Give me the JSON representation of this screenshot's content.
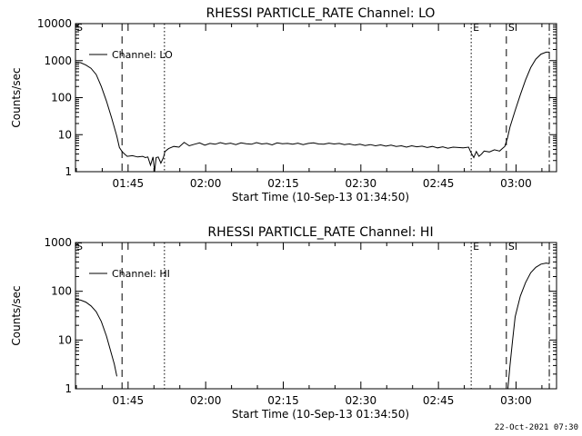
{
  "chart_data": [
    {
      "type": "line",
      "title": "RHESSI PARTICLE_RATE Channel: LO",
      "xlabel": "Start Time (10-Sep-13 01:34:50)",
      "ylabel": "Counts/sec",
      "yscale": "log",
      "ylim": [
        1,
        10000
      ],
      "xlim_minutes": [
        0,
        93
      ],
      "y_ticks": [
        {
          "v": 1,
          "label": "1"
        },
        {
          "v": 10,
          "label": "10"
        },
        {
          "v": 100,
          "label": "100"
        },
        {
          "v": 1000,
          "label": "1000"
        },
        {
          "v": 10000,
          "label": "10000"
        }
      ],
      "x_ticks": [
        {
          "t": 10.17,
          "label": "01:45"
        },
        {
          "t": 25.17,
          "label": "02:00"
        },
        {
          "t": 40.17,
          "label": "02:15"
        },
        {
          "t": 55.17,
          "label": "02:30"
        },
        {
          "t": 70.17,
          "label": "02:45"
        },
        {
          "t": 85.17,
          "label": "03:00"
        }
      ],
      "legend": {
        "label": "Channel: LO",
        "placement": "top-left"
      },
      "markers": [
        {
          "t": 9.0,
          "style": "dashed",
          "label": ""
        },
        {
          "t": 17.2,
          "style": "dotted",
          "label": ""
        },
        {
          "t": 76.5,
          "style": "dotted",
          "label": "E"
        },
        {
          "t": 83.3,
          "style": "dashed",
          "label": "S"
        },
        {
          "t": 91.6,
          "style": "dashdot",
          "label": ""
        }
      ],
      "corner_label": "S",
      "grid": false,
      "series": [
        {
          "name": "Channel: LO",
          "points": [
            [
              0,
              900
            ],
            [
              1,
              880
            ],
            [
              2,
              760
            ],
            [
              3,
              620
            ],
            [
              4,
              420
            ],
            [
              5,
              200
            ],
            [
              6,
              80
            ],
            [
              7,
              28
            ],
            [
              8,
              9
            ],
            [
              8.5,
              4.5
            ],
            [
              9,
              3.5
            ],
            [
              9.5,
              3
            ],
            [
              10,
              2.6
            ],
            [
              11,
              2.7
            ],
            [
              12,
              2.5
            ],
            [
              13,
              2.6
            ],
            [
              13.5,
              2.4
            ],
            [
              14,
              2.5
            ],
            [
              14.5,
              1.5
            ],
            [
              15,
              2.5
            ],
            [
              15.3,
              1.0
            ],
            [
              15.6,
              2.4
            ],
            [
              16,
              2.5
            ],
            [
              16.5,
              1.7
            ],
            [
              17,
              2.4
            ],
            [
              17.3,
              3.5
            ],
            [
              18,
              4.2
            ],
            [
              19,
              4.8
            ],
            [
              20,
              4.6
            ],
            [
              21,
              6.2
            ],
            [
              22,
              5.0
            ],
            [
              23,
              5.5
            ],
            [
              24,
              6.0
            ],
            [
              25,
              5.2
            ],
            [
              26,
              5.8
            ],
            [
              27,
              5.5
            ],
            [
              28,
              6.1
            ],
            [
              29,
              5.6
            ],
            [
              30,
              5.9
            ],
            [
              31,
              5.4
            ],
            [
              32,
              6.0
            ],
            [
              33,
              5.7
            ],
            [
              34,
              5.5
            ],
            [
              35,
              6.1
            ],
            [
              36,
              5.6
            ],
            [
              37,
              5.8
            ],
            [
              38,
              5.3
            ],
            [
              39,
              6.0
            ],
            [
              40,
              5.7
            ],
            [
              41,
              5.8
            ],
            [
              42,
              5.5
            ],
            [
              43,
              5.9
            ],
            [
              44,
              5.4
            ],
            [
              45,
              5.8
            ],
            [
              46,
              6.0
            ],
            [
              47,
              5.6
            ],
            [
              48,
              5.5
            ],
            [
              49,
              5.9
            ],
            [
              50,
              5.6
            ],
            [
              51,
              5.8
            ],
            [
              52,
              5.4
            ],
            [
              53,
              5.6
            ],
            [
              54,
              5.2
            ],
            [
              55,
              5.5
            ],
            [
              56,
              5.1
            ],
            [
              57,
              5.4
            ],
            [
              58,
              5.0
            ],
            [
              59,
              5.3
            ],
            [
              60,
              4.9
            ],
            [
              61,
              5.2
            ],
            [
              62,
              4.8
            ],
            [
              63,
              5.0
            ],
            [
              64,
              4.6
            ],
            [
              65,
              5.0
            ],
            [
              66,
              4.7
            ],
            [
              67,
              4.9
            ],
            [
              68,
              4.5
            ],
            [
              69,
              4.8
            ],
            [
              70,
              4.4
            ],
            [
              71,
              4.7
            ],
            [
              72,
              4.3
            ],
            [
              73,
              4.6
            ],
            [
              74,
              4.5
            ],
            [
              75,
              4.4
            ],
            [
              76,
              4.6
            ],
            [
              76.5,
              3.2
            ],
            [
              77,
              2.4
            ],
            [
              77.5,
              3.5
            ],
            [
              78,
              2.6
            ],
            [
              78.5,
              3.0
            ],
            [
              79,
              3.6
            ],
            [
              80,
              3.4
            ],
            [
              81,
              3.9
            ],
            [
              82,
              3.6
            ],
            [
              82.5,
              4.2
            ],
            [
              83,
              4.8
            ],
            [
              83.5,
              8
            ],
            [
              84,
              16
            ],
            [
              85,
              45
            ],
            [
              86,
              120
            ],
            [
              87,
              300
            ],
            [
              88,
              650
            ],
            [
              89,
              1100
            ],
            [
              90,
              1500
            ],
            [
              91,
              1700
            ],
            [
              91.6,
              1700
            ]
          ]
        }
      ]
    },
    {
      "type": "line",
      "title": "RHESSI PARTICLE_RATE Channel: HI",
      "xlabel": "Start Time (10-Sep-13 01:34:50)",
      "ylabel": "Counts/sec",
      "yscale": "log",
      "ylim": [
        1,
        1000
      ],
      "xlim_minutes": [
        0,
        93
      ],
      "y_ticks": [
        {
          "v": 1,
          "label": "1"
        },
        {
          "v": 10,
          "label": "10"
        },
        {
          "v": 100,
          "label": "100"
        },
        {
          "v": 1000,
          "label": "1000"
        }
      ],
      "x_ticks": [
        {
          "t": 10.17,
          "label": "01:45"
        },
        {
          "t": 25.17,
          "label": "02:00"
        },
        {
          "t": 40.17,
          "label": "02:15"
        },
        {
          "t": 55.17,
          "label": "02:30"
        },
        {
          "t": 70.17,
          "label": "02:45"
        },
        {
          "t": 85.17,
          "label": "03:00"
        }
      ],
      "legend": {
        "label": "Channel: HI",
        "placement": "top-left"
      },
      "markers": [
        {
          "t": 9.0,
          "style": "dashed",
          "label": ""
        },
        {
          "t": 17.2,
          "style": "dotted",
          "label": ""
        },
        {
          "t": 76.5,
          "style": "dotted",
          "label": "E"
        },
        {
          "t": 83.3,
          "style": "dashed",
          "label": "S"
        },
        {
          "t": 91.6,
          "style": "dashdot",
          "label": ""
        }
      ],
      "corner_label": "S",
      "grid": false,
      "series": [
        {
          "name": "Channel: HI",
          "points_segments": [
            [
              [
                0,
                68
              ],
              [
                1,
                66
              ],
              [
                2,
                60
              ],
              [
                3,
                50
              ],
              [
                4,
                38
              ],
              [
                5,
                24
              ],
              [
                6,
                12
              ],
              [
                7,
                5
              ],
              [
                7.5,
                3.2
              ],
              [
                8,
                1.8
              ]
            ],
            [
              [
                83.6,
                1.0
              ],
              [
                84,
                3
              ],
              [
                84.5,
                10
              ],
              [
                85,
                30
              ],
              [
                86,
                80
              ],
              [
                87,
                150
              ],
              [
                88,
                240
              ],
              [
                89,
                310
              ],
              [
                90,
                360
              ],
              [
                91,
                380
              ],
              [
                91.6,
                370
              ]
            ]
          ]
        }
      ]
    }
  ],
  "footer": {
    "timestamp": "22-Oct-2021 07:30"
  }
}
